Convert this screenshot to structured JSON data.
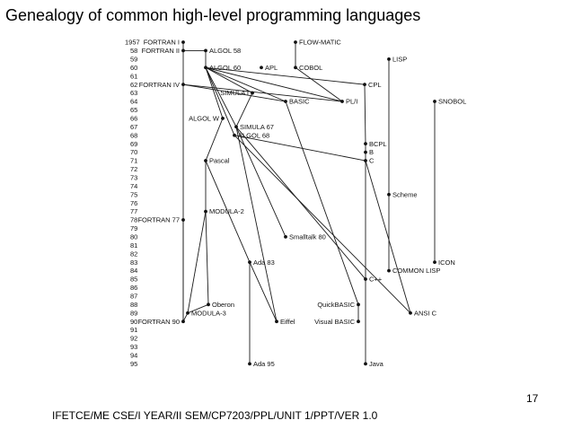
{
  "slide": {
    "title": "Genealogy of common high-level programming languages",
    "page_number": "17",
    "footer": "IFETCE/ME CSE/I YEAR/II SEM/CP7203/PPL/UNIT 1/PPT/VER 1.0"
  },
  "timeline": {
    "years": [
      "1957",
      "58",
      "59",
      "60",
      "61",
      "62",
      "63",
      "64",
      "65",
      "66",
      "67",
      "68",
      "69",
      "70",
      "71",
      "72",
      "73",
      "74",
      "75",
      "76",
      "77",
      "78",
      "79",
      "80",
      "81",
      "82",
      "83",
      "84",
      "85",
      "86",
      "87",
      "88",
      "89",
      "90",
      "91",
      "92",
      "93",
      "94",
      "95"
    ],
    "left_labels": [
      {
        "year": 1957,
        "label": "FORTRAN I"
      },
      {
        "year": 1958,
        "label": "FORTRAN II"
      },
      {
        "year": 1962,
        "label": "FORTRAN IV"
      },
      {
        "year": 1978,
        "label": "FORTRAN 77"
      },
      {
        "year": 1990,
        "label": "FORTRAN 90"
      }
    ]
  },
  "languages": [
    {
      "id": "fortran1",
      "label": "FORTRAN I"
    },
    {
      "id": "fortran2",
      "label": "FORTRAN II"
    },
    {
      "id": "fortran4",
      "label": "FORTRAN IV"
    },
    {
      "id": "fortran77",
      "label": "FORTRAN 77"
    },
    {
      "id": "fortran90",
      "label": "FORTRAN 90"
    },
    {
      "id": "algol58",
      "label": "ALGOL 58"
    },
    {
      "id": "algol60",
      "label": "ALGOL 60"
    },
    {
      "id": "apl",
      "label": "APL"
    },
    {
      "id": "flowmatic",
      "label": "FLOW-MATIC"
    },
    {
      "id": "cobol",
      "label": "COBOL"
    },
    {
      "id": "lisp",
      "label": "LISP"
    },
    {
      "id": "cpl",
      "label": "CPL"
    },
    {
      "id": "snobol",
      "label": "SNOBOL"
    },
    {
      "id": "simula1",
      "label": "SIMULA I"
    },
    {
      "id": "basic",
      "label": "BASIC"
    },
    {
      "id": "pli",
      "label": "PL/I"
    },
    {
      "id": "algolw",
      "label": "ALGOL W"
    },
    {
      "id": "simula67",
      "label": "SIMULA 67"
    },
    {
      "id": "algol68",
      "label": "ALGOL 68"
    },
    {
      "id": "bcpl",
      "label": "BCPL"
    },
    {
      "id": "b",
      "label": "B"
    },
    {
      "id": "c",
      "label": "C"
    },
    {
      "id": "pascal",
      "label": "Pascal"
    },
    {
      "id": "scheme",
      "label": "Scheme"
    },
    {
      "id": "modula2",
      "label": "MODULA-2"
    },
    {
      "id": "smalltalk80",
      "label": "Smalltalk 80"
    },
    {
      "id": "ada83",
      "label": "Ada 83"
    },
    {
      "id": "icon",
      "label": "ICON"
    },
    {
      "id": "commonlisp",
      "label": "COMMON LISP"
    },
    {
      "id": "cpp",
      "label": "C++"
    },
    {
      "id": "oberon",
      "label": "Oberon"
    },
    {
      "id": "quickbasic",
      "label": "QuickBASIC"
    },
    {
      "id": "modula3",
      "label": "MODULA-3"
    },
    {
      "id": "ansic",
      "label": "ANSI C"
    },
    {
      "id": "eiffel",
      "label": "Eiffel"
    },
    {
      "id": "visualbasic",
      "label": "Visual BASIC"
    },
    {
      "id": "ada95",
      "label": "Ada 95"
    },
    {
      "id": "java",
      "label": "Java"
    }
  ],
  "influences": [
    [
      "fortran1",
      "fortran2"
    ],
    [
      "fortran2",
      "fortran4"
    ],
    [
      "fortran4",
      "fortran77"
    ],
    [
      "fortran77",
      "fortran90"
    ],
    [
      "fortran2",
      "algol58"
    ],
    [
      "algol58",
      "algol60"
    ],
    [
      "flowmatic",
      "cobol"
    ],
    [
      "cobol",
      "pli"
    ],
    [
      "fortran4",
      "pli"
    ],
    [
      "algol60",
      "pli"
    ],
    [
      "algol60",
      "simula1"
    ],
    [
      "algol60",
      "basic"
    ],
    [
      "fortran4",
      "basic"
    ],
    [
      "algol60",
      "algolw"
    ],
    [
      "algol60",
      "algol68"
    ],
    [
      "algol60",
      "cpl"
    ],
    [
      "simula1",
      "simula67"
    ],
    [
      "algol60",
      "simula67"
    ],
    [
      "algolw",
      "pascal"
    ],
    [
      "algol68",
      "c"
    ],
    [
      "cpl",
      "bcpl"
    ],
    [
      "bcpl",
      "b"
    ],
    [
      "b",
      "c"
    ],
    [
      "lisp",
      "scheme"
    ],
    [
      "scheme",
      "commonlisp"
    ],
    [
      "snobol",
      "icon"
    ],
    [
      "pascal",
      "modula2"
    ],
    [
      "pascal",
      "ada83"
    ],
    [
      "modula2",
      "modula3"
    ],
    [
      "modula2",
      "oberon"
    ],
    [
      "oberon",
      "modula3"
    ],
    [
      "ada83",
      "ada95"
    ],
    [
      "ada83",
      "eiffel"
    ],
    [
      "simula67",
      "smalltalk80"
    ],
    [
      "simula67",
      "eiffel"
    ],
    [
      "simula67",
      "cpp"
    ],
    [
      "c",
      "cpp"
    ],
    [
      "c",
      "ansic"
    ],
    [
      "cpp",
      "java"
    ],
    [
      "basic",
      "quickbasic"
    ],
    [
      "quickbasic",
      "visualbasic"
    ],
    [
      "fortran77",
      "fortran90"
    ],
    [
      "modula3",
      "fortran90"
    ],
    [
      "algol68",
      "ansic"
    ]
  ]
}
